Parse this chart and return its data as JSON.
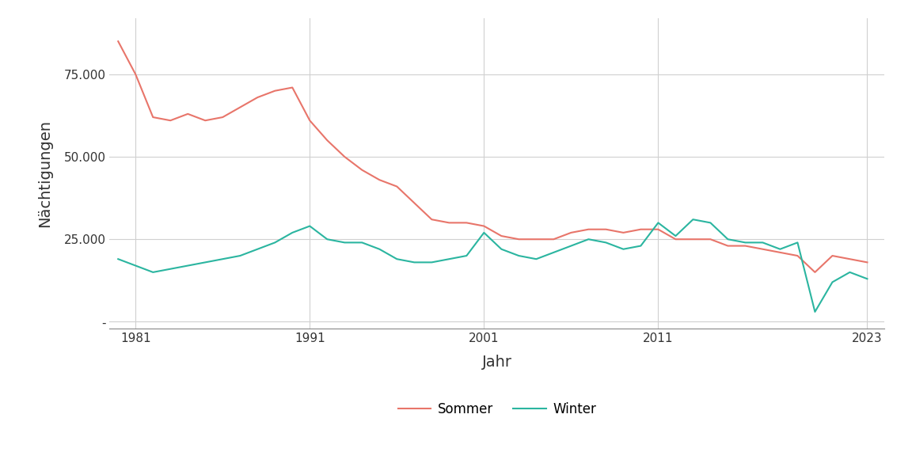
{
  "years": [
    1980,
    1981,
    1982,
    1983,
    1984,
    1985,
    1986,
    1987,
    1988,
    1989,
    1990,
    1991,
    1992,
    1993,
    1994,
    1995,
    1996,
    1997,
    1998,
    1999,
    2000,
    2001,
    2002,
    2003,
    2004,
    2005,
    2006,
    2007,
    2008,
    2009,
    2010,
    2011,
    2012,
    2013,
    2014,
    2015,
    2016,
    2017,
    2018,
    2019,
    2020,
    2021,
    2022,
    2023
  ],
  "sommer": [
    85000,
    75000,
    62000,
    61000,
    63000,
    61000,
    62000,
    65000,
    68000,
    70000,
    71000,
    61000,
    55000,
    50000,
    46000,
    43000,
    41000,
    36000,
    31000,
    30000,
    30000,
    29000,
    26000,
    25000,
    25000,
    25000,
    27000,
    28000,
    28000,
    27000,
    28000,
    28000,
    25000,
    25000,
    25000,
    23000,
    23000,
    22000,
    21000,
    20000,
    15000,
    20000,
    19000,
    18000
  ],
  "winter": [
    19000,
    17000,
    15000,
    16000,
    17000,
    18000,
    19000,
    20000,
    22000,
    24000,
    27000,
    29000,
    25000,
    24000,
    24000,
    22000,
    19000,
    18000,
    18000,
    19000,
    20000,
    27000,
    22000,
    20000,
    19000,
    21000,
    23000,
    25000,
    24000,
    22000,
    23000,
    30000,
    26000,
    31000,
    30000,
    25000,
    24000,
    24000,
    22000,
    24000,
    3000,
    12000,
    15000,
    13000
  ],
  "sommer_color": "#E8756A",
  "winter_color": "#2BB5A0",
  "background_color": "#ffffff",
  "grid_color": "#d0d0d0",
  "xlabel": "Jahr",
  "ylabel": "Nächtigungen",
  "xlim": [
    1979.5,
    2024
  ],
  "ylim": [
    -2000,
    92000
  ],
  "yticks": [
    0,
    25000,
    50000,
    75000
  ],
  "xticks": [
    1981,
    1991,
    2001,
    2011,
    2023
  ],
  "legend_labels": [
    "Sommer",
    "Winter"
  ],
  "line_width": 1.5
}
